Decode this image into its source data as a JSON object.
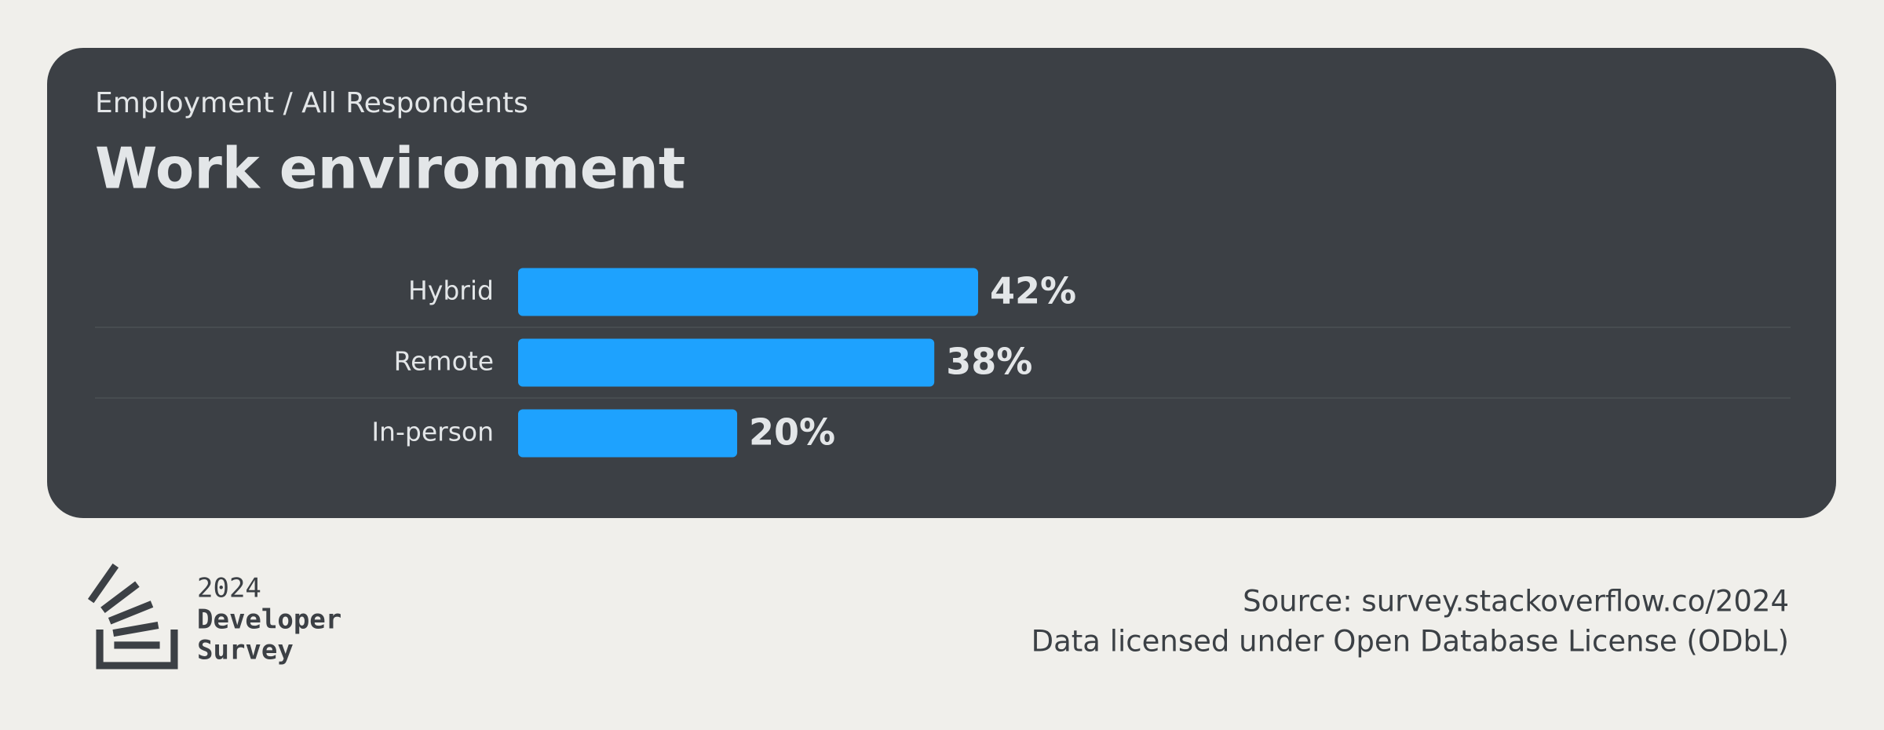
{
  "chart_data": {
    "type": "bar",
    "orientation": "horizontal",
    "subtitle": "Employment / All Respondents",
    "title": "Work environment",
    "categories": [
      "Hybrid",
      "Remote",
      "In-person"
    ],
    "values": [
      42,
      38,
      20
    ],
    "value_labels": [
      "42%",
      "38%",
      "20%"
    ],
    "color": "#1ea2fe"
  },
  "footer": {
    "logo": {
      "year": "2024",
      "line1": "Developer",
      "line2": "Survey"
    },
    "source": "Source: survey.stackoverflow.co/2024",
    "license": "Data licensed under Open Database License (ODbL)"
  }
}
